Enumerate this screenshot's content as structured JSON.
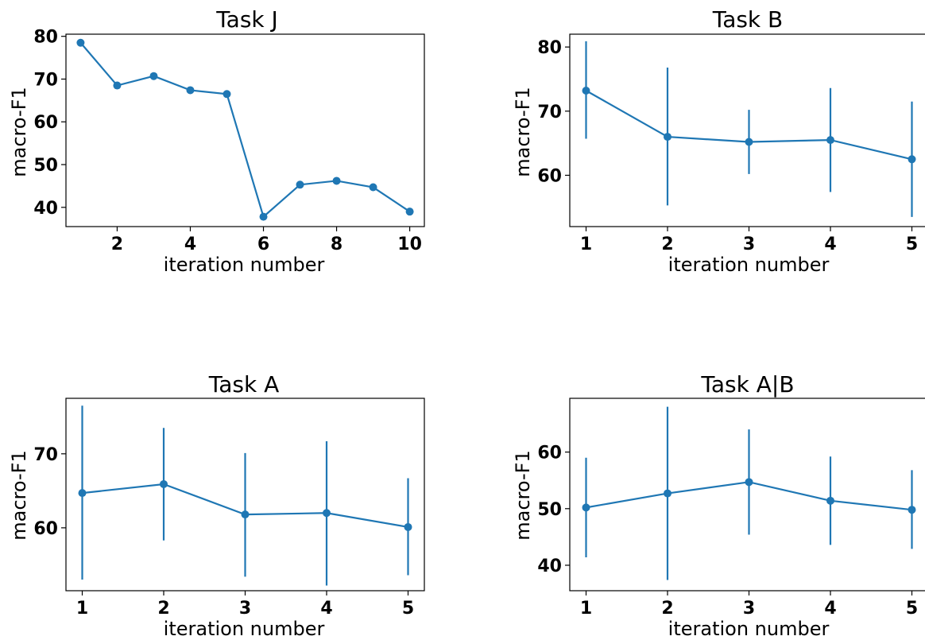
{
  "chart_data": [
    {
      "type": "line",
      "title": "Task J",
      "xlabel": "iteration number",
      "ylabel": "macro-F1",
      "xlim": [
        0.6,
        10.4
      ],
      "ylim": [
        35.5,
        80.5
      ],
      "xticks": [
        2,
        4,
        6,
        8,
        10
      ],
      "yticks": [
        40,
        50,
        60,
        70,
        80
      ],
      "color": "#1f77b4",
      "error_bars": false,
      "series": [
        {
          "x": [
            1,
            2,
            3,
            4,
            5,
            6,
            7,
            8,
            9,
            10
          ],
          "values": [
            78.5,
            68.5,
            70.7,
            67.4,
            66.5,
            37.8,
            45.3,
            46.2,
            44.7,
            39.0
          ]
        }
      ]
    },
    {
      "type": "line",
      "title": "Task B",
      "xlabel": "iteration number",
      "ylabel": "macro-F1",
      "xlim": [
        0.8,
        5.2
      ],
      "ylim": [
        52,
        82
      ],
      "xticks": [
        1,
        2,
        3,
        4,
        5
      ],
      "yticks": [
        60,
        70,
        80
      ],
      "color": "#1f77b4",
      "error_bars": true,
      "series": [
        {
          "x": [
            1,
            2,
            3,
            4,
            5
          ],
          "values": [
            73.2,
            66.0,
            65.2,
            65.5,
            62.5
          ],
          "error_low": [
            65.7,
            55.3,
            60.2,
            57.4,
            53.5
          ],
          "error_high": [
            80.9,
            76.8,
            70.2,
            73.6,
            71.5
          ]
        }
      ]
    },
    {
      "type": "line",
      "title": "Task A",
      "xlabel": "iteration number",
      "ylabel": "macro-F1",
      "xlim": [
        0.8,
        5.2
      ],
      "ylim": [
        51.5,
        77.5
      ],
      "xticks": [
        1,
        2,
        3,
        4,
        5
      ],
      "yticks": [
        60,
        70
      ],
      "color": "#1f77b4",
      "error_bars": true,
      "series": [
        {
          "x": [
            1,
            2,
            3,
            4,
            5
          ],
          "values": [
            64.7,
            65.9,
            61.8,
            62.0,
            60.1
          ],
          "error_low": [
            53.0,
            58.3,
            53.4,
            52.2,
            53.6
          ],
          "error_high": [
            76.5,
            73.5,
            70.1,
            71.7,
            66.7
          ]
        }
      ]
    },
    {
      "type": "line",
      "title": "Task A|B",
      "xlabel": "iteration number",
      "ylabel": "macro-F1",
      "xlim": [
        0.8,
        5.2
      ],
      "ylim": [
        35.5,
        69.5
      ],
      "xticks": [
        1,
        2,
        3,
        4,
        5
      ],
      "yticks": [
        40,
        50,
        60
      ],
      "color": "#1f77b4",
      "error_bars": true,
      "series": [
        {
          "x": [
            1,
            2,
            3,
            4,
            5
          ],
          "values": [
            50.2,
            52.7,
            54.7,
            51.4,
            49.8
          ],
          "error_low": [
            41.4,
            37.4,
            45.4,
            43.6,
            42.9
          ],
          "error_high": [
            59.0,
            68.0,
            64.0,
            59.2,
            56.8
          ]
        }
      ]
    }
  ]
}
